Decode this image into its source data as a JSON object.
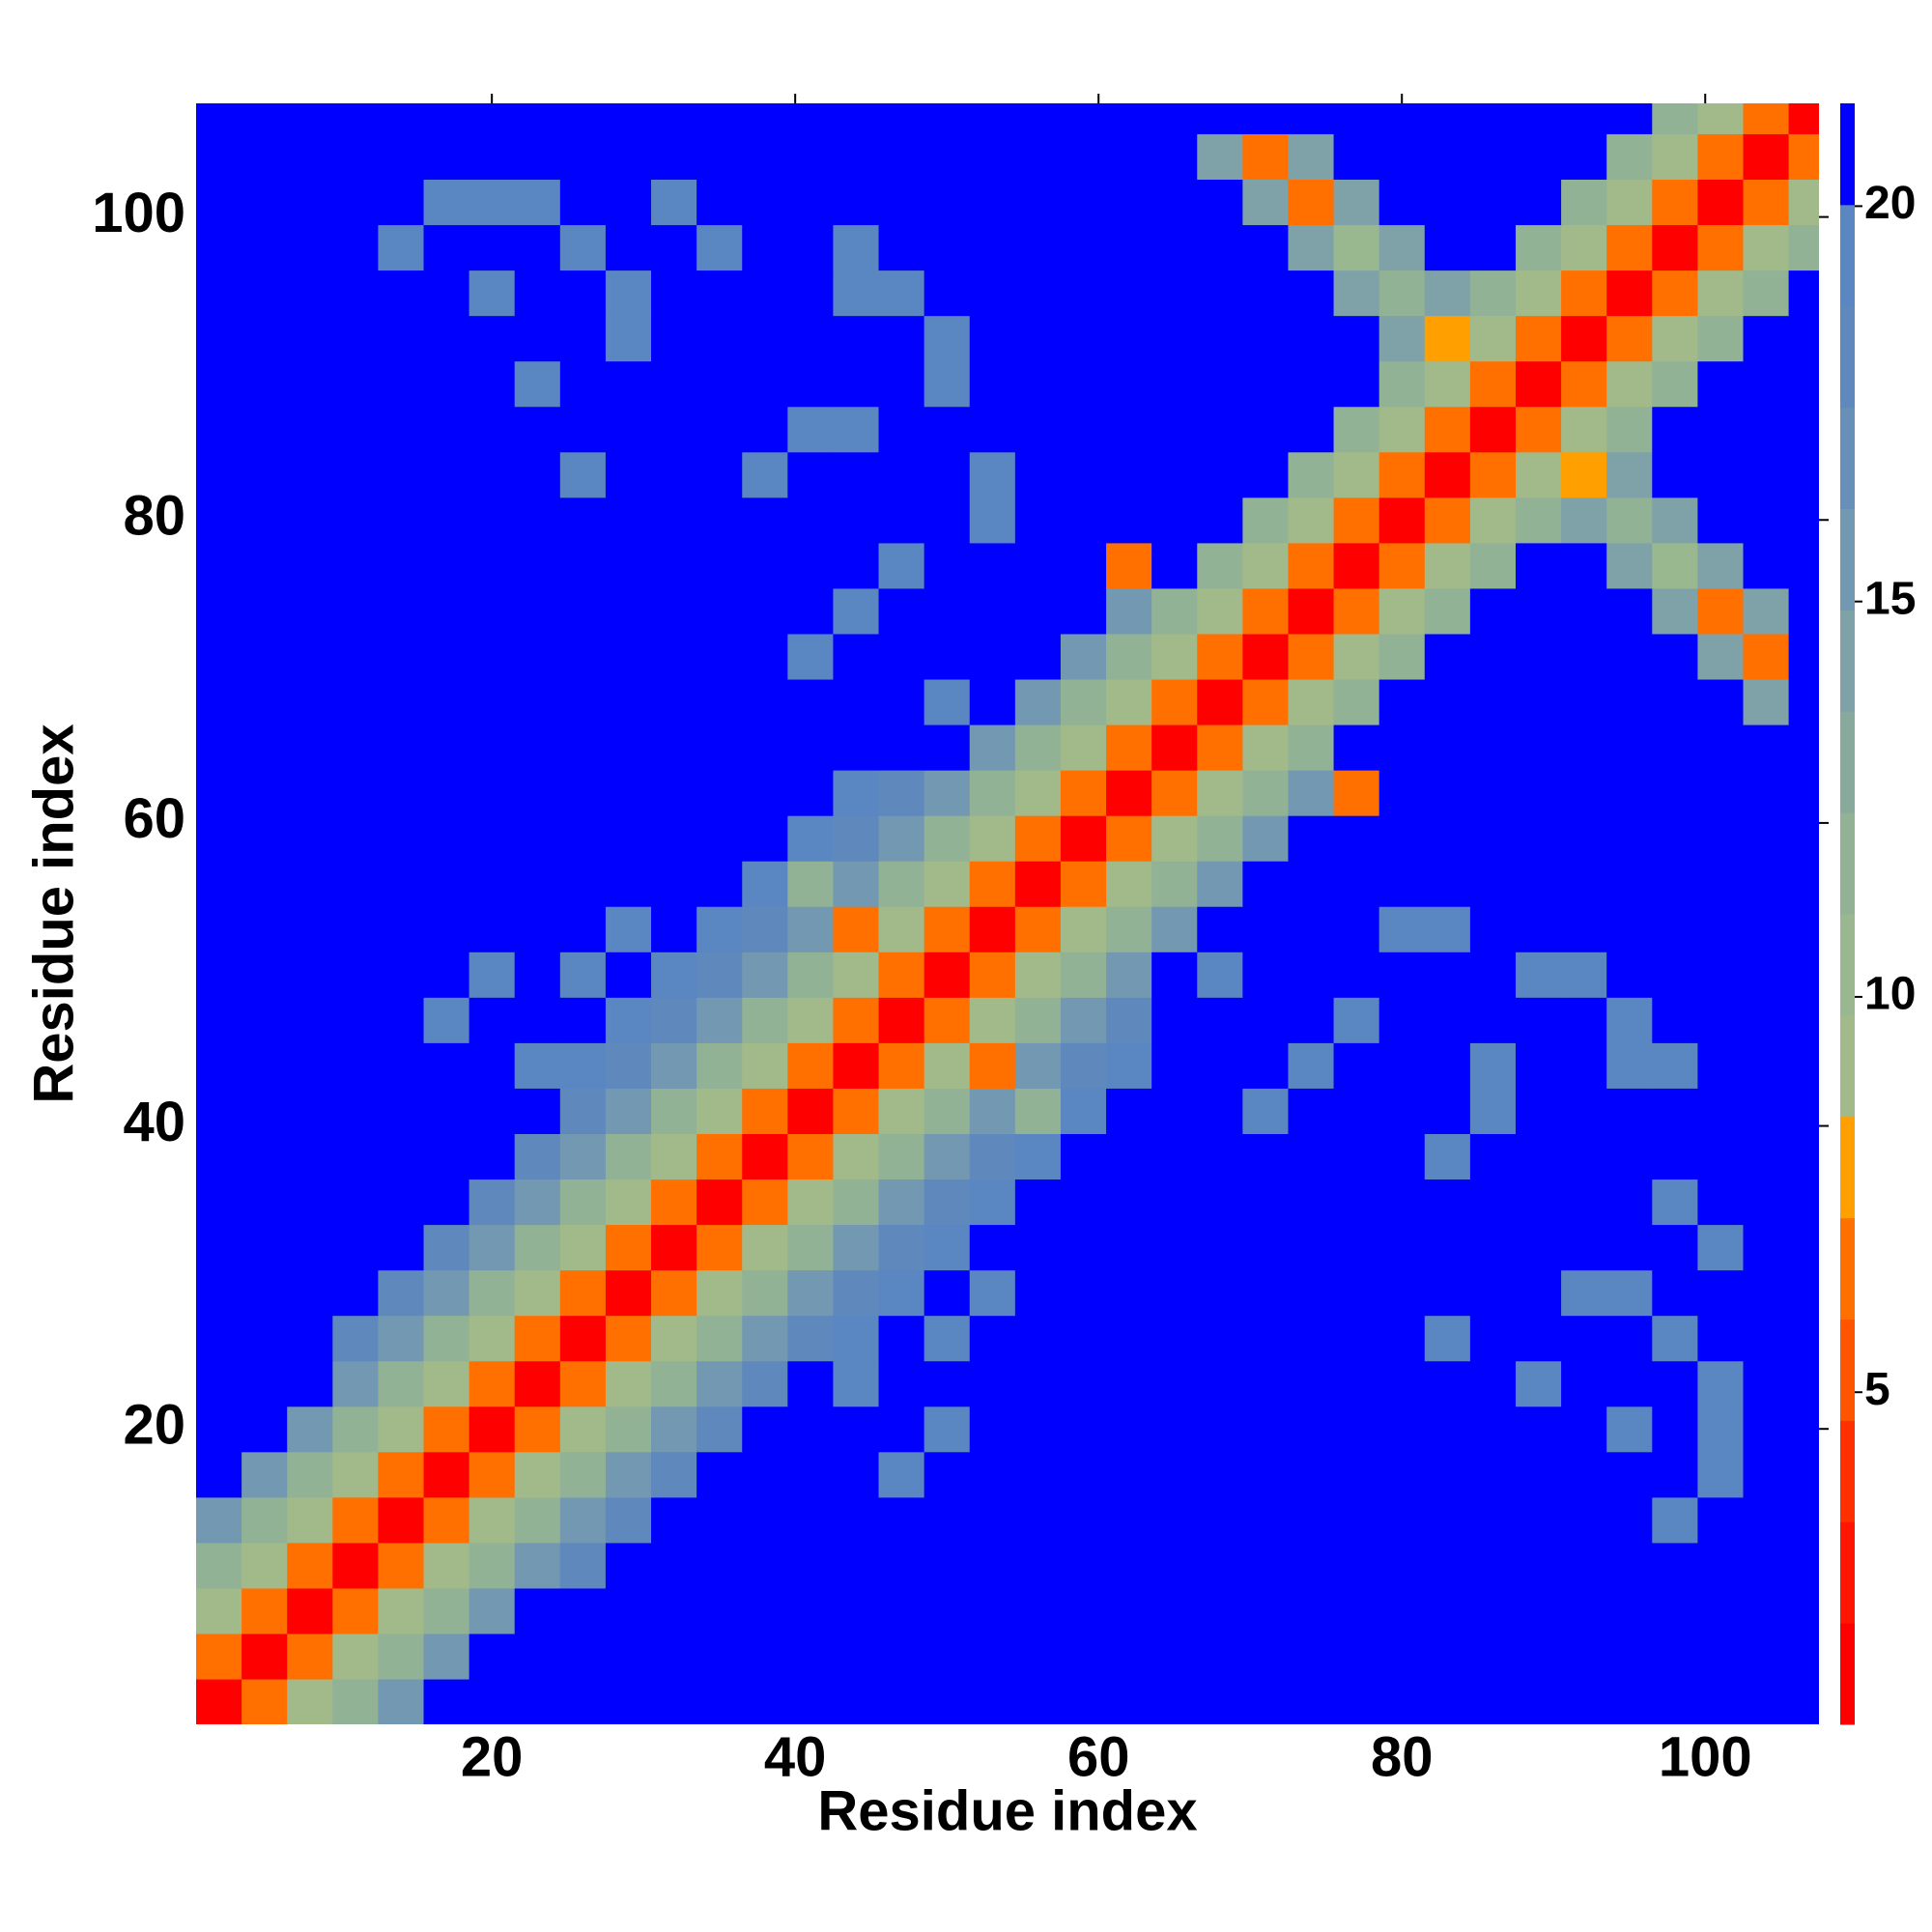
{
  "chart_data": {
    "type": "heatmap",
    "xlabel": "Residue index",
    "ylabel": "Residue index",
    "xlim": [
      0.5,
      107.5
    ],
    "ylim": [
      0.5,
      107.5
    ],
    "xticks": [
      20,
      40,
      60,
      80,
      100
    ],
    "yticks": [
      20,
      40,
      60,
      80,
      100
    ],
    "x": [
      2,
      5,
      8,
      11,
      14,
      17,
      20,
      23,
      26,
      29,
      32,
      35,
      38,
      41,
      44,
      47,
      50,
      53,
      56,
      59,
      62,
      65,
      68,
      71,
      74,
      77,
      80,
      83,
      86,
      89,
      92,
      95,
      98,
      101,
      104,
      107
    ],
    "y": [
      2,
      5,
      8,
      11,
      14,
      17,
      20,
      23,
      26,
      29,
      32,
      35,
      38,
      41,
      44,
      47,
      50,
      53,
      56,
      59,
      62,
      65,
      68,
      71,
      74,
      77,
      80,
      83,
      86,
      89,
      92,
      95,
      98,
      101,
      104,
      107
    ],
    "z": [
      [
        2,
        6,
        9,
        12,
        15,
        22,
        22,
        22,
        22,
        22,
        22,
        22,
        22,
        22,
        22,
        22,
        22,
        22,
        22,
        22,
        22,
        22,
        22,
        22,
        22,
        22,
        22,
        22,
        22,
        22,
        22,
        22,
        22,
        22,
        22,
        22
      ],
      [
        6,
        2,
        6,
        9,
        12,
        15,
        22,
        22,
        22,
        22,
        22,
        22,
        22,
        22,
        22,
        22,
        22,
        22,
        22,
        22,
        22,
        22,
        22,
        22,
        22,
        22,
        22,
        22,
        22,
        22,
        22,
        22,
        22,
        22,
        22,
        22
      ],
      [
        9,
        6,
        2,
        6,
        9,
        12,
        15,
        22,
        22,
        22,
        22,
        22,
        22,
        22,
        22,
        22,
        22,
        22,
        22,
        22,
        22,
        22,
        22,
        22,
        22,
        22,
        22,
        22,
        22,
        22,
        22,
        22,
        22,
        22,
        22,
        22
      ],
      [
        12,
        9,
        6,
        2,
        6,
        9,
        12,
        15,
        18,
        22,
        22,
        22,
        22,
        22,
        22,
        22,
        22,
        22,
        22,
        22,
        22,
        22,
        22,
        22,
        22,
        22,
        22,
        22,
        22,
        22,
        22,
        22,
        22,
        22,
        22,
        22
      ],
      [
        15,
        12,
        9,
        6,
        2,
        6,
        9,
        12,
        15,
        18,
        22,
        22,
        22,
        22,
        22,
        22,
        22,
        22,
        22,
        22,
        22,
        22,
        22,
        22,
        22,
        22,
        22,
        22,
        22,
        22,
        22,
        22,
        19,
        22,
        22,
        22
      ],
      [
        22,
        15,
        12,
        9,
        6,
        2,
        6,
        9,
        12,
        15,
        18,
        22,
        22,
        22,
        22,
        19,
        22,
        22,
        22,
        22,
        22,
        22,
        22,
        22,
        22,
        22,
        22,
        22,
        22,
        22,
        22,
        22,
        22,
        19,
        22,
        22
      ],
      [
        22,
        22,
        15,
        12,
        9,
        6,
        2,
        6,
        9,
        12,
        15,
        18,
        22,
        22,
        22,
        22,
        19,
        22,
        22,
        22,
        22,
        22,
        22,
        22,
        22,
        22,
        22,
        22,
        22,
        22,
        22,
        19,
        22,
        19,
        22,
        22
      ],
      [
        22,
        22,
        22,
        15,
        12,
        9,
        6,
        2,
        6,
        9,
        12,
        15,
        18,
        22,
        19,
        22,
        22,
        22,
        22,
        22,
        22,
        22,
        22,
        22,
        22,
        22,
        22,
        22,
        22,
        19,
        22,
        22,
        22,
        19,
        22,
        22
      ],
      [
        22,
        22,
        22,
        18,
        15,
        12,
        9,
        6,
        2,
        6,
        9,
        12,
        15,
        18,
        19,
        22,
        19,
        22,
        22,
        22,
        22,
        22,
        22,
        22,
        22,
        22,
        22,
        19,
        22,
        22,
        22,
        22,
        19,
        22,
        22,
        22
      ],
      [
        22,
        22,
        22,
        22,
        18,
        15,
        12,
        9,
        6,
        2,
        6,
        9,
        12,
        15,
        18,
        19,
        22,
        19,
        22,
        22,
        22,
        22,
        22,
        22,
        22,
        22,
        22,
        22,
        22,
        22,
        19,
        19,
        22,
        22,
        22,
        22
      ],
      [
        22,
        22,
        22,
        22,
        22,
        18,
        15,
        12,
        9,
        6,
        2,
        6,
        9,
        12,
        15,
        18,
        19,
        22,
        22,
        22,
        22,
        22,
        22,
        22,
        22,
        22,
        22,
        22,
        22,
        22,
        22,
        22,
        22,
        19,
        22,
        22
      ],
      [
        22,
        22,
        22,
        22,
        22,
        22,
        18,
        15,
        12,
        9,
        6,
        2,
        6,
        9,
        12,
        15,
        18,
        19,
        22,
        22,
        22,
        22,
        22,
        22,
        22,
        22,
        22,
        22,
        22,
        22,
        22,
        22,
        19,
        22,
        22,
        22
      ],
      [
        22,
        22,
        22,
        22,
        22,
        22,
        22,
        18,
        15,
        12,
        9,
        6,
        2,
        6,
        9,
        12,
        15,
        18,
        19,
        22,
        22,
        22,
        22,
        22,
        22,
        22,
        22,
        19,
        22,
        22,
        22,
        22,
        22,
        22,
        22,
        22
      ],
      [
        22,
        22,
        22,
        22,
        22,
        22,
        22,
        22,
        18,
        15,
        12,
        9,
        6,
        2,
        6,
        9,
        12,
        15,
        12,
        19,
        22,
        22,
        22,
        19,
        22,
        22,
        22,
        22,
        19,
        22,
        22,
        22,
        22,
        22,
        22,
        22
      ],
      [
        22,
        22,
        22,
        22,
        22,
        22,
        22,
        19,
        19,
        18,
        15,
        12,
        9,
        6,
        2,
        6,
        9,
        7,
        15,
        18,
        19,
        22,
        22,
        22,
        19,
        22,
        22,
        22,
        19,
        22,
        22,
        19,
        19,
        22,
        22,
        22
      ],
      [
        22,
        22,
        22,
        22,
        22,
        19,
        22,
        22,
        22,
        19,
        18,
        15,
        12,
        9,
        6,
        2,
        6,
        9,
        12,
        15,
        18,
        22,
        22,
        22,
        22,
        19,
        22,
        22,
        22,
        22,
        22,
        19,
        22,
        22,
        22,
        22
      ],
      [
        22,
        22,
        22,
        22,
        22,
        22,
        19,
        22,
        19,
        22,
        19,
        18,
        15,
        12,
        9,
        6,
        2,
        6,
        9,
        12,
        15,
        22,
        19,
        22,
        22,
        22,
        22,
        22,
        22,
        19,
        19,
        22,
        22,
        22,
        22,
        22
      ],
      [
        22,
        22,
        22,
        22,
        22,
        22,
        22,
        22,
        22,
        19,
        22,
        19,
        18,
        15,
        7,
        9,
        6,
        2,
        6,
        9,
        12,
        15,
        22,
        22,
        22,
        22,
        19,
        19,
        22,
        22,
        22,
        22,
        22,
        22,
        22,
        22
      ],
      [
        22,
        22,
        22,
        22,
        22,
        22,
        22,
        22,
        22,
        22,
        22,
        22,
        19,
        12,
        15,
        12,
        9,
        6,
        2,
        6,
        9,
        12,
        15,
        22,
        22,
        22,
        22,
        22,
        22,
        22,
        22,
        22,
        22,
        22,
        22,
        22
      ],
      [
        22,
        22,
        22,
        22,
        22,
        22,
        22,
        22,
        22,
        22,
        22,
        22,
        22,
        19,
        18,
        15,
        12,
        9,
        6,
        2,
        6,
        9,
        12,
        15,
        22,
        22,
        22,
        22,
        22,
        22,
        22,
        22,
        22,
        22,
        22,
        22
      ],
      [
        22,
        22,
        22,
        22,
        22,
        22,
        22,
        22,
        22,
        22,
        22,
        22,
        22,
        22,
        19,
        18,
        15,
        12,
        9,
        6,
        2,
        6,
        9,
        12,
        15,
        7,
        22,
        22,
        22,
        22,
        22,
        22,
        22,
        22,
        22,
        22
      ],
      [
        22,
        22,
        22,
        22,
        22,
        22,
        22,
        22,
        22,
        22,
        22,
        22,
        22,
        22,
        22,
        22,
        22,
        15,
        12,
        9,
        6,
        2,
        6,
        9,
        12,
        22,
        22,
        22,
        22,
        22,
        22,
        22,
        22,
        22,
        22,
        22
      ],
      [
        22,
        22,
        22,
        22,
        22,
        22,
        22,
        22,
        22,
        22,
        22,
        22,
        22,
        22,
        22,
        22,
        19,
        22,
        15,
        12,
        9,
        6,
        2,
        6,
        9,
        12,
        22,
        22,
        22,
        22,
        22,
        22,
        22,
        22,
        14,
        22
      ],
      [
        22,
        22,
        22,
        22,
        22,
        22,
        22,
        22,
        22,
        22,
        22,
        22,
        22,
        19,
        22,
        22,
        22,
        22,
        22,
        15,
        12,
        9,
        6,
        2,
        6,
        9,
        12,
        22,
        22,
        22,
        22,
        22,
        22,
        14,
        7,
        22
      ],
      [
        22,
        22,
        22,
        22,
        22,
        22,
        22,
        22,
        22,
        22,
        22,
        22,
        22,
        22,
        19,
        22,
        22,
        22,
        22,
        22,
        15,
        12,
        9,
        6,
        2,
        6,
        9,
        12,
        22,
        22,
        22,
        22,
        14,
        7,
        14,
        22
      ],
      [
        22,
        22,
        22,
        22,
        22,
        22,
        22,
        22,
        22,
        22,
        22,
        22,
        22,
        22,
        22,
        19,
        22,
        22,
        22,
        22,
        7,
        22,
        12,
        9,
        6,
        2,
        6,
        9,
        12,
        22,
        22,
        14,
        11,
        14,
        22,
        22
      ],
      [
        22,
        22,
        22,
        22,
        22,
        22,
        22,
        22,
        22,
        22,
        22,
        22,
        22,
        22,
        22,
        22,
        22,
        19,
        22,
        22,
        22,
        22,
        22,
        12,
        9,
        6,
        2,
        6,
        9,
        12,
        14,
        12,
        14,
        22,
        22,
        22
      ],
      [
        22,
        22,
        22,
        22,
        22,
        22,
        22,
        22,
        19,
        22,
        22,
        22,
        19,
        22,
        22,
        22,
        22,
        19,
        22,
        22,
        22,
        22,
        22,
        22,
        12,
        9,
        6,
        2,
        6,
        9,
        8,
        14,
        22,
        22,
        22,
        22
      ],
      [
        22,
        22,
        22,
        22,
        22,
        22,
        22,
        22,
        22,
        22,
        22,
        22,
        22,
        19,
        19,
        22,
        22,
        22,
        22,
        22,
        22,
        22,
        22,
        22,
        22,
        12,
        9,
        6,
        2,
        6,
        9,
        12,
        22,
        22,
        22,
        22
      ],
      [
        22,
        22,
        22,
        22,
        22,
        22,
        22,
        19,
        22,
        22,
        22,
        22,
        22,
        22,
        22,
        22,
        19,
        22,
        22,
        22,
        22,
        22,
        22,
        22,
        22,
        22,
        12,
        9,
        6,
        2,
        6,
        9,
        12,
        22,
        22,
        22
      ],
      [
        22,
        22,
        22,
        22,
        22,
        22,
        22,
        22,
        22,
        19,
        22,
        22,
        22,
        22,
        22,
        22,
        19,
        22,
        22,
        22,
        22,
        22,
        22,
        22,
        22,
        22,
        14,
        8,
        9,
        6,
        2,
        6,
        9,
        12,
        22,
        22
      ],
      [
        22,
        22,
        22,
        22,
        22,
        22,
        19,
        22,
        22,
        19,
        22,
        22,
        22,
        22,
        19,
        19,
        22,
        22,
        22,
        22,
        22,
        22,
        22,
        22,
        22,
        14,
        12,
        14,
        12,
        9,
        6,
        2,
        6,
        9,
        12,
        22
      ],
      [
        22,
        22,
        22,
        22,
        19,
        22,
        22,
        22,
        19,
        22,
        22,
        19,
        22,
        22,
        19,
        22,
        22,
        22,
        22,
        22,
        22,
        22,
        22,
        22,
        14,
        11,
        14,
        22,
        22,
        12,
        9,
        6,
        2,
        6,
        9,
        12
      ],
      [
        22,
        22,
        22,
        22,
        22,
        19,
        19,
        19,
        22,
        22,
        19,
        22,
        22,
        22,
        22,
        22,
        22,
        22,
        22,
        22,
        22,
        22,
        22,
        14,
        7,
        14,
        22,
        22,
        22,
        22,
        12,
        9,
        6,
        2,
        6,
        9
      ],
      [
        22,
        22,
        22,
        22,
        22,
        22,
        22,
        22,
        22,
        22,
        22,
        22,
        22,
        22,
        22,
        22,
        22,
        22,
        22,
        22,
        22,
        22,
        14,
        7,
        14,
        22,
        22,
        22,
        22,
        22,
        22,
        12,
        9,
        6,
        2,
        6
      ],
      [
        22,
        22,
        22,
        22,
        22,
        22,
        22,
        22,
        22,
        22,
        22,
        22,
        22,
        22,
        22,
        22,
        22,
        22,
        22,
        22,
        22,
        22,
        22,
        22,
        22,
        22,
        22,
        22,
        22,
        22,
        22,
        22,
        12,
        9,
        6,
        2
      ]
    ],
    "colorbar": {
      "clim": [
        0.8,
        21.3
      ],
      "ticks": [
        5,
        10,
        15,
        20
      ],
      "colors": [
        "#ff0000",
        "#ff1500",
        "#ff3000",
        "#ff5500",
        "#ff7000",
        "#ffa000",
        "#a2b98a",
        "#9ab890",
        "#92b296",
        "#88aa9c",
        "#7ea2a8",
        "#7298b2",
        "#688fb8",
        "#5f88bd",
        "#5a86c2",
        "#0000ff"
      ]
    }
  }
}
